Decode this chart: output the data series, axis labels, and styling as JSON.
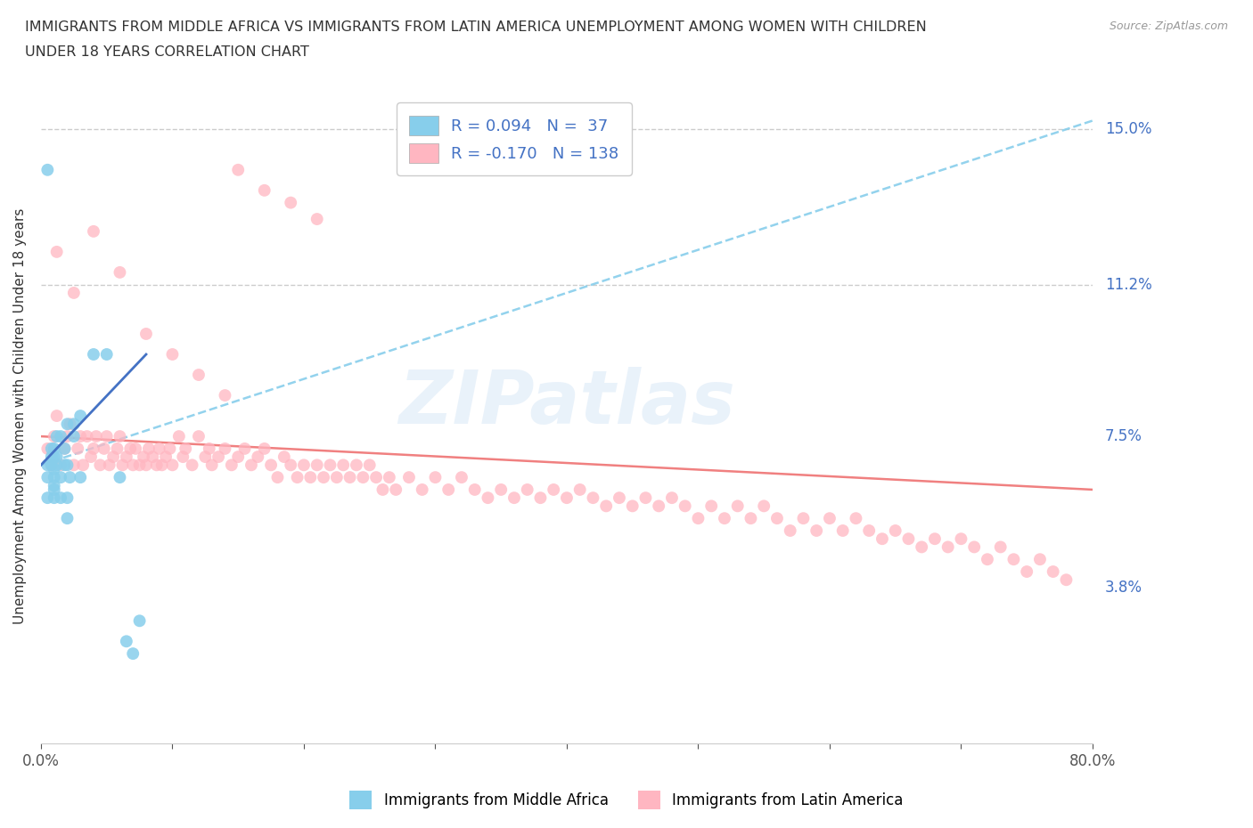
{
  "title_line1": "IMMIGRANTS FROM MIDDLE AFRICA VS IMMIGRANTS FROM LATIN AMERICA UNEMPLOYMENT AMONG WOMEN WITH CHILDREN",
  "title_line2": "UNDER 18 YEARS CORRELATION CHART",
  "source_text": "Source: ZipAtlas.com",
  "ylabel": "Unemployment Among Women with Children Under 18 years",
  "xlim": [
    0,
    0.8
  ],
  "ylim": [
    0.0,
    0.16
  ],
  "yticks": [
    0.038,
    0.075,
    0.112,
    0.15
  ],
  "ytick_labels": [
    "3.8%",
    "7.5%",
    "11.2%",
    "15.0%"
  ],
  "color_blue": "#87CEEB",
  "color_pink": "#FFB6C1",
  "trendline_blue_color": "#87CEEB",
  "trendline_pink_color": "#F08080",
  "R_blue": 0.094,
  "N_blue": 37,
  "R_pink": -0.17,
  "N_pink": 138,
  "watermark": "ZIPatlas",
  "hline_values": [
    0.112,
    0.15
  ],
  "hline_color": "#CCCCCC",
  "background_color": "#FFFFFF",
  "blue_scatter_x": [
    0.005,
    0.005,
    0.005,
    0.008,
    0.008,
    0.008,
    0.01,
    0.01,
    0.01,
    0.01,
    0.01,
    0.01,
    0.01,
    0.012,
    0.012,
    0.012,
    0.015,
    0.015,
    0.015,
    0.018,
    0.018,
    0.02,
    0.02,
    0.02,
    0.02,
    0.022,
    0.025,
    0.025,
    0.03,
    0.03,
    0.04,
    0.05,
    0.06,
    0.065,
    0.07,
    0.075,
    0.005
  ],
  "blue_scatter_y": [
    0.06,
    0.065,
    0.068,
    0.068,
    0.07,
    0.072,
    0.06,
    0.062,
    0.063,
    0.065,
    0.067,
    0.07,
    0.072,
    0.068,
    0.07,
    0.075,
    0.06,
    0.065,
    0.075,
    0.068,
    0.072,
    0.055,
    0.06,
    0.068,
    0.078,
    0.065,
    0.075,
    0.078,
    0.065,
    0.08,
    0.095,
    0.095,
    0.065,
    0.025,
    0.022,
    0.03,
    0.14
  ],
  "pink_scatter_x": [
    0.005,
    0.008,
    0.01,
    0.012,
    0.015,
    0.018,
    0.02,
    0.022,
    0.025,
    0.028,
    0.03,
    0.032,
    0.035,
    0.038,
    0.04,
    0.042,
    0.045,
    0.048,
    0.05,
    0.052,
    0.055,
    0.058,
    0.06,
    0.062,
    0.065,
    0.068,
    0.07,
    0.072,
    0.075,
    0.078,
    0.08,
    0.082,
    0.085,
    0.088,
    0.09,
    0.092,
    0.095,
    0.098,
    0.1,
    0.105,
    0.108,
    0.11,
    0.115,
    0.12,
    0.125,
    0.128,
    0.13,
    0.135,
    0.14,
    0.145,
    0.15,
    0.155,
    0.16,
    0.165,
    0.17,
    0.175,
    0.18,
    0.185,
    0.19,
    0.195,
    0.2,
    0.205,
    0.21,
    0.215,
    0.22,
    0.225,
    0.23,
    0.235,
    0.24,
    0.245,
    0.25,
    0.255,
    0.26,
    0.265,
    0.27,
    0.28,
    0.29,
    0.3,
    0.31,
    0.32,
    0.33,
    0.34,
    0.35,
    0.36,
    0.37,
    0.38,
    0.39,
    0.4,
    0.41,
    0.42,
    0.43,
    0.44,
    0.45,
    0.46,
    0.47,
    0.48,
    0.49,
    0.5,
    0.51,
    0.52,
    0.53,
    0.54,
    0.55,
    0.56,
    0.57,
    0.58,
    0.59,
    0.6,
    0.61,
    0.62,
    0.63,
    0.64,
    0.65,
    0.66,
    0.67,
    0.68,
    0.69,
    0.7,
    0.71,
    0.72,
    0.73,
    0.74,
    0.75,
    0.76,
    0.77,
    0.78,
    0.012,
    0.025,
    0.04,
    0.06,
    0.08,
    0.1,
    0.12,
    0.14,
    0.15,
    0.17,
    0.19,
    0.21
  ],
  "pink_scatter_y": [
    0.072,
    0.068,
    0.075,
    0.08,
    0.068,
    0.072,
    0.075,
    0.078,
    0.068,
    0.072,
    0.075,
    0.068,
    0.075,
    0.07,
    0.072,
    0.075,
    0.068,
    0.072,
    0.075,
    0.068,
    0.07,
    0.072,
    0.075,
    0.068,
    0.07,
    0.072,
    0.068,
    0.072,
    0.068,
    0.07,
    0.068,
    0.072,
    0.07,
    0.068,
    0.072,
    0.068,
    0.07,
    0.072,
    0.068,
    0.075,
    0.07,
    0.072,
    0.068,
    0.075,
    0.07,
    0.072,
    0.068,
    0.07,
    0.072,
    0.068,
    0.07,
    0.072,
    0.068,
    0.07,
    0.072,
    0.068,
    0.065,
    0.07,
    0.068,
    0.065,
    0.068,
    0.065,
    0.068,
    0.065,
    0.068,
    0.065,
    0.068,
    0.065,
    0.068,
    0.065,
    0.068,
    0.065,
    0.062,
    0.065,
    0.062,
    0.065,
    0.062,
    0.065,
    0.062,
    0.065,
    0.062,
    0.06,
    0.062,
    0.06,
    0.062,
    0.06,
    0.062,
    0.06,
    0.062,
    0.06,
    0.058,
    0.06,
    0.058,
    0.06,
    0.058,
    0.06,
    0.058,
    0.055,
    0.058,
    0.055,
    0.058,
    0.055,
    0.058,
    0.055,
    0.052,
    0.055,
    0.052,
    0.055,
    0.052,
    0.055,
    0.052,
    0.05,
    0.052,
    0.05,
    0.048,
    0.05,
    0.048,
    0.05,
    0.048,
    0.045,
    0.048,
    0.045,
    0.042,
    0.045,
    0.042,
    0.04,
    0.12,
    0.11,
    0.125,
    0.115,
    0.1,
    0.095,
    0.09,
    0.085,
    0.14,
    0.135,
    0.132,
    0.128
  ]
}
